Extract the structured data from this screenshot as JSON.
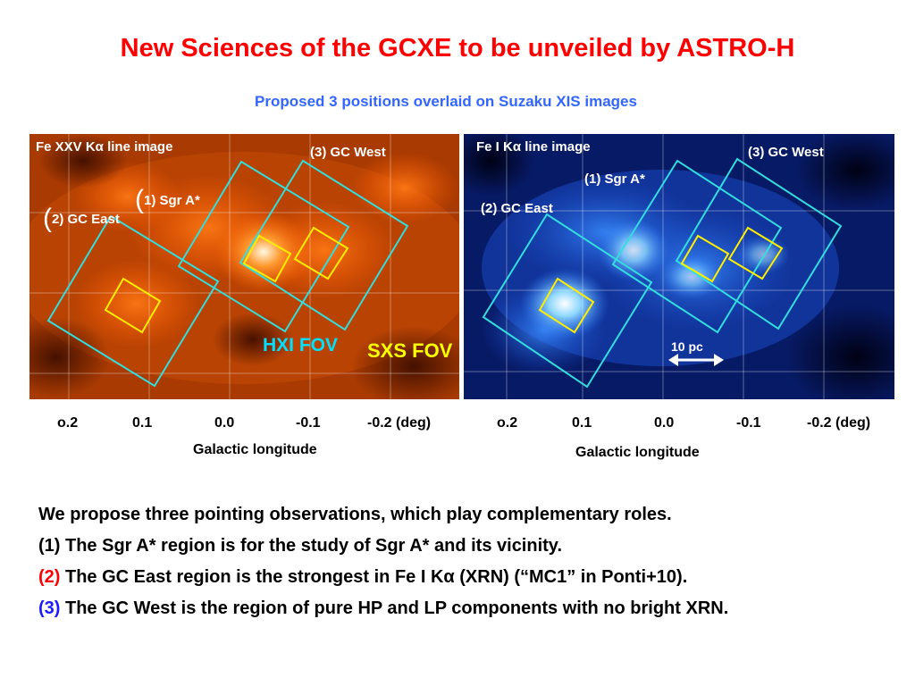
{
  "title": "New Sciences of the GCXE to be unveiled by ASTRO-H",
  "subtitle": "Proposed 3 positions overlaid on Suzaku XIS images",
  "left_panel": {
    "label": "Fe XXV Kα line image",
    "sgr_label_paren": "(",
    "sgr_label": "1) Sgr A*",
    "east_label_paren": "(",
    "east_label": "2) GC East",
    "west_label": "(3) GC West",
    "hxi_fov": "HXI FOV",
    "sxs_fov": "SXS FOV"
  },
  "right_panel": {
    "label": "Fe I Kα line image",
    "sgr_label": "(1) Sgr A*",
    "east_label": "(2) GC East",
    "west_label": "(3) GC West",
    "scale_label": "10 pc"
  },
  "left_axis": {
    "ticks": [
      "o.2",
      "0.1",
      "0.0",
      "-0.1",
      "-0.2 (deg)"
    ],
    "label": "Galactic longitude"
  },
  "right_axis": {
    "ticks": [
      "o.2",
      "0.1",
      "0.0",
      "-0.1",
      "-0.2 (deg)"
    ],
    "label": "Galactic longitude"
  },
  "text": {
    "intro": "We propose three pointing observations, which play complementary roles.",
    "item1_num": "(1) ",
    "item1_text": "The Sgr A* region is for the study of Sgr A* and its vicinity.",
    "item2_num": "(2) ",
    "item2_text": "The GC East region is the strongest in Fe I Kα (XRN) (“MC1” in Ponti+10).",
    "item3_num": "(3) ",
    "item3_text": "The GC West  is  the region of pure HP and LP components with no bright XRN."
  },
  "colors": {
    "title": "#ff0000",
    "subtitle": "#3366ff",
    "hxi_box": "#33dddd",
    "sxs_box": "#ffee00",
    "item2_num": "#ff0000",
    "item3_num": "#1a1aff"
  }
}
